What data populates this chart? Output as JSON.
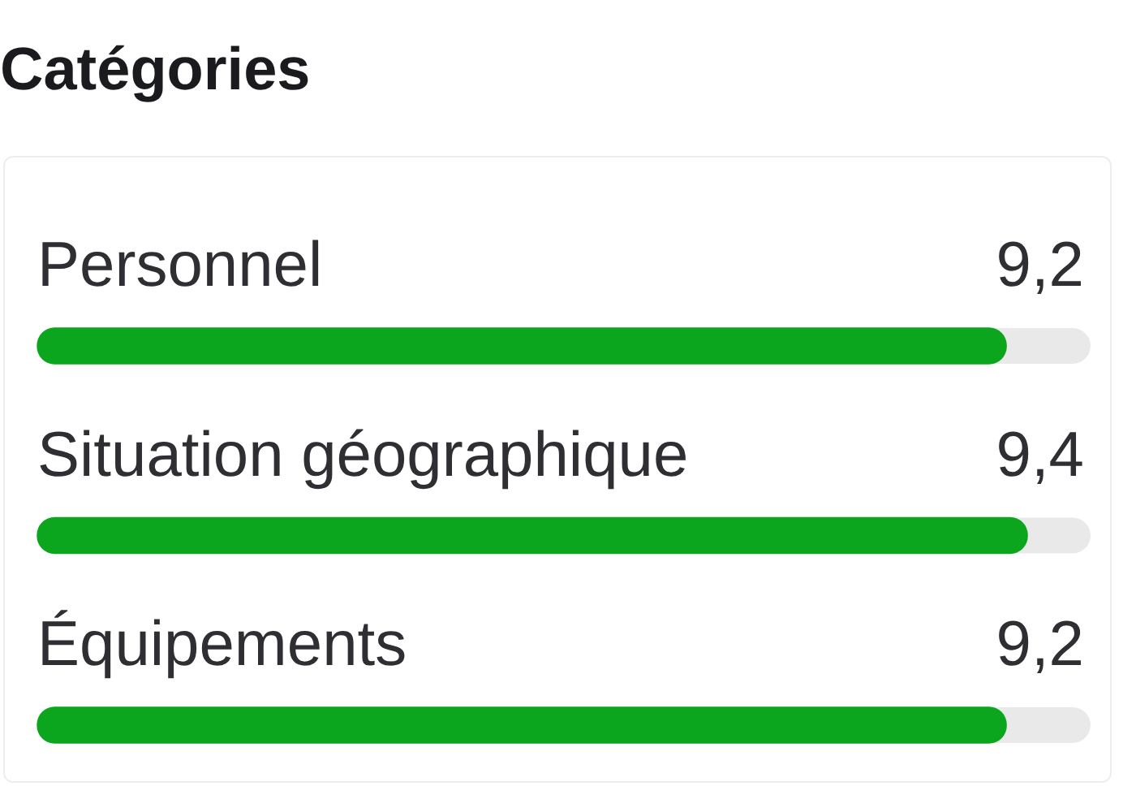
{
  "chart_data": {
    "type": "bar",
    "orientation": "horizontal",
    "title": "Catégories",
    "categories": [
      "Personnel",
      "Situation géographique",
      "Équipements"
    ],
    "values": [
      9.2,
      9.4,
      9.2
    ],
    "value_labels": [
      "9,2",
      "9,4",
      "9,2"
    ],
    "color": "#0ca51e",
    "xlim": [
      0,
      10
    ],
    "tick_labels": false,
    "grid": false,
    "legend": false
  }
}
